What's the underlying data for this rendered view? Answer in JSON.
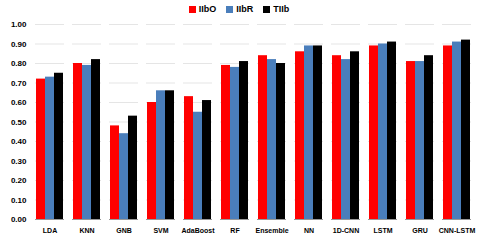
{
  "chart_data": {
    "type": "bar",
    "categories": [
      "LDA",
      "KNN",
      "GNB",
      "SVM",
      "AdaBoost",
      "RF",
      "Ensemble",
      "NN",
      "1D-CNN",
      "LSTM",
      "GRU",
      "CNN-LSTM"
    ],
    "series": [
      {
        "name": "IIbO",
        "color": "#ff0000",
        "values": [
          0.72,
          0.8,
          0.48,
          0.6,
          0.63,
          0.79,
          0.84,
          0.86,
          0.84,
          0.89,
          0.81,
          0.89
        ]
      },
      {
        "name": "IIbR",
        "color": "#4a7ebb",
        "values": [
          0.73,
          0.79,
          0.44,
          0.66,
          0.55,
          0.78,
          0.82,
          0.89,
          0.82,
          0.9,
          0.81,
          0.91
        ]
      },
      {
        "name": "TIIb",
        "color": "#000000",
        "values": [
          0.75,
          0.82,
          0.53,
          0.66,
          0.61,
          0.81,
          0.8,
          0.89,
          0.86,
          0.91,
          0.84,
          0.92
        ]
      }
    ],
    "ylim": [
      0,
      1
    ],
    "yticks": [
      {
        "value": 0,
        "label": "0.00"
      },
      {
        "value": 0.1,
        "label": "0.10"
      },
      {
        "value": 0.2,
        "label": "0.20"
      },
      {
        "value": 0.3,
        "label": "0.30"
      },
      {
        "value": 0.4,
        "label": "0.40"
      },
      {
        "value": 0.5,
        "label": "0.50"
      },
      {
        "value": 0.6,
        "label": "0.60"
      },
      {
        "value": 0.7,
        "label": "0.70"
      },
      {
        "value": 0.8,
        "label": "0.80"
      },
      {
        "value": 0.9,
        "label": "0.90"
      },
      {
        "value": 1,
        "label": "1.00"
      }
    ],
    "grid": true,
    "legend": "top"
  }
}
